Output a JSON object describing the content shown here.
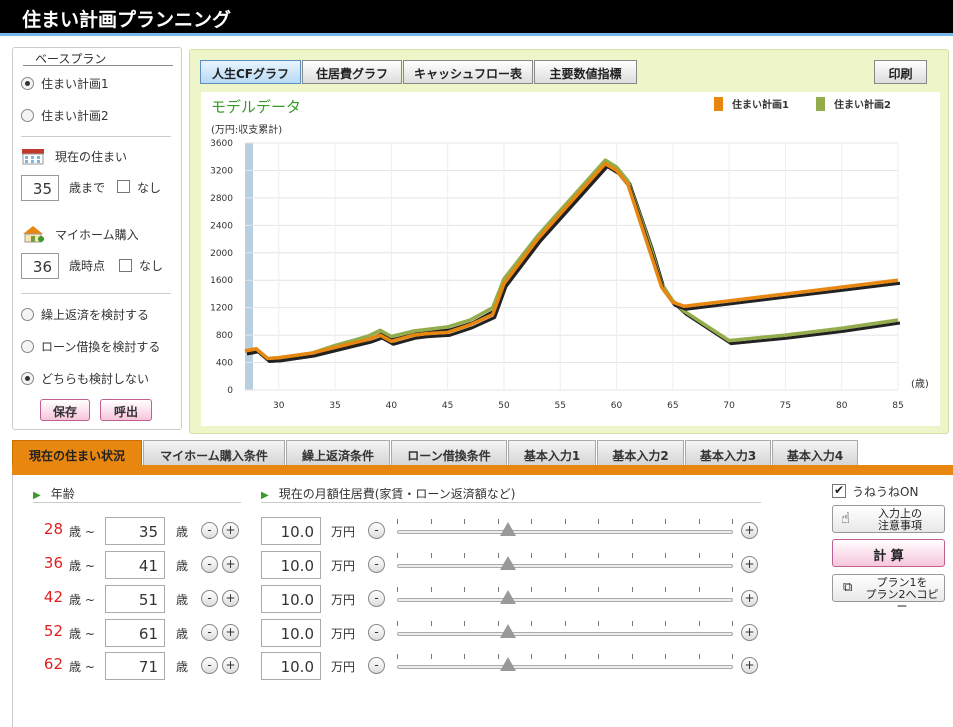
{
  "app": {
    "title": "住まい計画プランニング"
  },
  "sidebar": {
    "base_plan_title": "ベースプラン",
    "plans": [
      {
        "label": "住まい計画1",
        "selected": true
      },
      {
        "label": "住まい計画2",
        "selected": false
      }
    ],
    "current_home": {
      "label": "現在の住まい",
      "age": "35",
      "unit": "歳まで",
      "none_label": "なし"
    },
    "myhome": {
      "label": "マイホーム購入",
      "age": "36",
      "unit": "歳時点",
      "none_label": "なし"
    },
    "options": [
      {
        "label": "繰上返済を検討する",
        "selected": false
      },
      {
        "label": "ローン借換を検討する",
        "selected": false
      },
      {
        "label": "どちらも検討しない",
        "selected": true
      }
    ],
    "save_label": "保存",
    "load_label": "呼出"
  },
  "graph_tabs": [
    "人生CFグラフ",
    "住居費グラフ",
    "キャッシュフロー表",
    "主要数値指標"
  ],
  "print_label": "印刷",
  "chart_data": {
    "type": "line",
    "title": "モデルデータ",
    "ylabel": "(万円:収支累計)",
    "xlabel": "(歳)",
    "ylim": [
      0,
      3600
    ],
    "xlim": [
      27,
      85
    ],
    "yticks": [
      "3600",
      "3200",
      "2800",
      "2400",
      "2000",
      "1600",
      "1200",
      "800",
      "400",
      "0"
    ],
    "xticks": [
      "30",
      "35",
      "40",
      "45",
      "50",
      "55",
      "60",
      "65",
      "70",
      "75",
      "80",
      "85"
    ],
    "legend_position": "top-right",
    "grid": true,
    "series": [
      {
        "name": "住まい計画1",
        "color": "#e8870f",
        "x": [
          27,
          28,
          29,
          30,
          33,
          35,
          37,
          38,
          39,
          40,
          42,
          43,
          44,
          45,
          47,
          49,
          50,
          53,
          56,
          59,
          60,
          61,
          63,
          64,
          65,
          66,
          70,
          75,
          80,
          85
        ],
        "y": [
          570,
          600,
          460,
          470,
          540,
          620,
          700,
          740,
          800,
          710,
          800,
          820,
          830,
          840,
          950,
          1100,
          1550,
          2200,
          2750,
          3300,
          3200,
          3000,
          2000,
          1500,
          1280,
          1220,
          1300,
          1400,
          1500,
          1600
        ]
      },
      {
        "name": "住まい計画2",
        "color": "#93ad4c",
        "x": [
          27,
          28,
          29,
          30,
          33,
          35,
          37,
          38,
          39,
          40,
          42,
          43,
          44,
          45,
          47,
          49,
          50,
          53,
          56,
          59,
          60,
          61,
          63,
          64,
          65,
          66,
          70,
          75,
          80,
          85
        ],
        "y": [
          570,
          600,
          460,
          470,
          540,
          650,
          740,
          790,
          870,
          780,
          860,
          880,
          900,
          920,
          1020,
          1200,
          1620,
          2250,
          2800,
          3350,
          3250,
          3050,
          2100,
          1550,
          1300,
          1150,
          720,
          800,
          900,
          1020
        ]
      }
    ]
  },
  "bottom_tabs": [
    "現在の住まい状況",
    "マイホーム購入条件",
    "繰上返済条件",
    "ローン借換条件",
    "基本入力1",
    "基本入力2",
    "基本入力3",
    "基本入力4"
  ],
  "inputs": {
    "age_header": "年齢",
    "housing_header": "現在の月額住居費(家賃・ローン返済額など)",
    "sai": "歳",
    "tilde": "歳 ~",
    "man_yen": "万円",
    "rows": [
      {
        "from": "28",
        "to": "35",
        "amount": "10.0",
        "slider": 0.33
      },
      {
        "from": "36",
        "to": "41",
        "amount": "10.0",
        "slider": 0.33
      },
      {
        "from": "42",
        "to": "51",
        "amount": "10.0",
        "slider": 0.33
      },
      {
        "from": "52",
        "to": "61",
        "amount": "10.0",
        "slider": 0.33
      },
      {
        "from": "62",
        "to": "71",
        "amount": "10.0",
        "slider": 0.33
      }
    ]
  },
  "side_actions": {
    "uneune_label": "うねうねON",
    "uneune_checked": true,
    "notes_label_1": "入力上の",
    "notes_label_2": "注意事項",
    "calc_label": "計 算",
    "copy_label_1": "プラン1を",
    "copy_label_2": "プラン2へコピー"
  }
}
